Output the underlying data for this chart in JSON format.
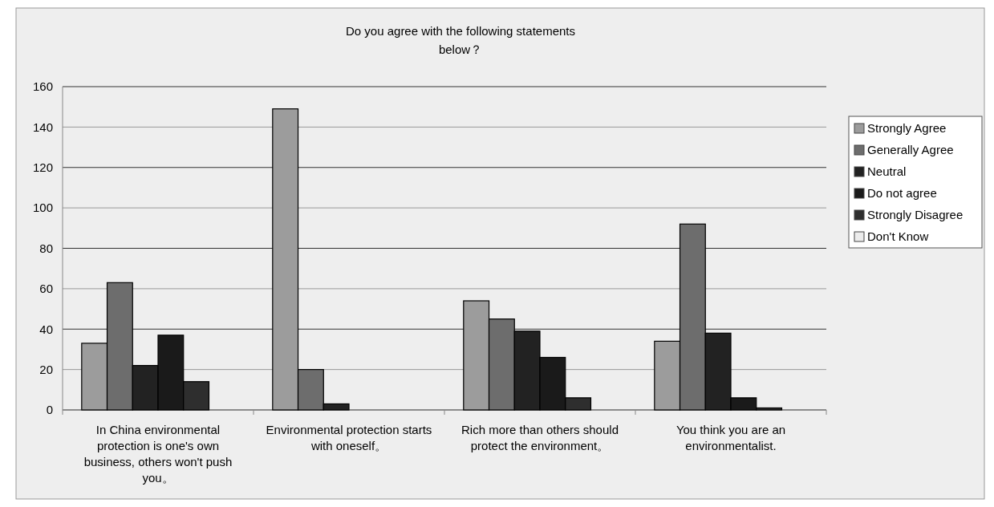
{
  "chart_data": {
    "type": "bar",
    "title": "Do you agree with the following statements below？",
    "categories": [
      "In China environmental protection is one's own business, others won't push you。",
      "Environmental protection starts with oneself。",
      "Rich more than others should protect the environment。",
      "You think you are an environmentalist."
    ],
    "series": [
      {
        "name": "Strongly Agree",
        "color": "#9c9c9c",
        "values": [
          33,
          149,
          54,
          34
        ]
      },
      {
        "name": "Generally Agree",
        "color": "#6d6d6d",
        "values": [
          63,
          20,
          45,
          92
        ]
      },
      {
        "name": "Neutral",
        "color": "#222222",
        "values": [
          22,
          3,
          39,
          38
        ]
      },
      {
        "name": "Do not agree",
        "color": "#1a1a1a",
        "values": [
          37,
          0,
          26,
          6
        ]
      },
      {
        "name": "Strongly Disagree",
        "color": "#2e2e2e",
        "values": [
          14,
          0,
          6,
          1
        ]
      },
      {
        "name": "Don't Know",
        "color": "#ececec",
        "values": [
          0,
          0,
          0,
          0
        ]
      }
    ],
    "ylim": [
      0,
      160
    ],
    "yticks": [
      0,
      20,
      40,
      60,
      80,
      100,
      120,
      140,
      160
    ],
    "grid": "y",
    "legend": "right"
  }
}
